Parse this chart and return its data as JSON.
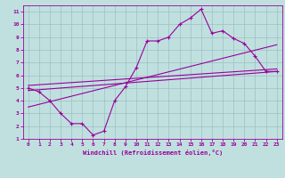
{
  "title": "",
  "xlabel": "Windchill (Refroidissement éolien,°C)",
  "bg_color": "#c0e0e0",
  "line_color": "#990099",
  "xlim": [
    -0.5,
    23.5
  ],
  "ylim": [
    1,
    11.5
  ],
  "xticks": [
    0,
    1,
    2,
    3,
    4,
    5,
    6,
    7,
    8,
    9,
    10,
    11,
    12,
    13,
    14,
    15,
    16,
    17,
    18,
    19,
    20,
    21,
    22,
    23
  ],
  "yticks": [
    1,
    2,
    3,
    4,
    5,
    6,
    7,
    8,
    9,
    10,
    11
  ],
  "grid_color": "#9bbfbf",
  "main_line_x": [
    0,
    1,
    2,
    3,
    4,
    5,
    6,
    7,
    8,
    9,
    10,
    11,
    12,
    13,
    14,
    15,
    16,
    17,
    18,
    19,
    20,
    21,
    22,
    23
  ],
  "main_line_y": [
    5.0,
    4.7,
    4.0,
    3.0,
    2.2,
    2.2,
    1.3,
    1.6,
    4.0,
    5.1,
    6.6,
    8.7,
    8.7,
    9.0,
    10.0,
    10.5,
    11.2,
    9.3,
    9.5,
    8.9,
    8.5,
    7.5,
    6.3,
    6.3
  ],
  "line2_x": [
    0,
    23
  ],
  "line2_y": [
    4.8,
    6.3
  ],
  "line3_x": [
    0,
    23
  ],
  "line3_y": [
    3.5,
    8.4
  ],
  "line4_x": [
    0,
    23
  ],
  "line4_y": [
    5.2,
    6.5
  ]
}
